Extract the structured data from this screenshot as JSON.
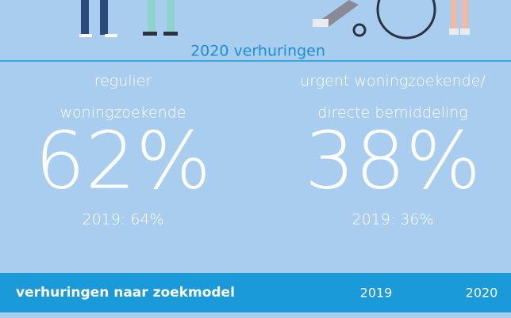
{
  "section_title": "2020 verhuringen",
  "stats": [
    {
      "label_lines": [
        "regulier",
        "woningzoekende"
      ],
      "value": "62%",
      "previous": "2019: 64%"
    },
    {
      "label_lines": [
        "urgent woningzoekende/",
        "directe bemiddeling"
      ],
      "value": "38%",
      "previous": "2019: 36%"
    }
  ],
  "table": {
    "header": [
      "verhuringen naar zoekmodel",
      "2019",
      "2020"
    ]
  }
}
